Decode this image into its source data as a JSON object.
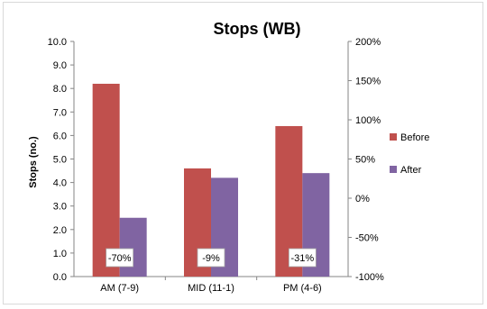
{
  "chart_data": {
    "type": "bar",
    "title": "Stops (WB)",
    "ylabel": "Stops (no.)",
    "xlabel": "",
    "categories": [
      "AM (7-9)",
      "MID (11-1)",
      "PM (4-6)"
    ],
    "series": [
      {
        "name": "Before",
        "values": [
          8.2,
          4.6,
          6.4
        ],
        "color": "#c0504d"
      },
      {
        "name": "After",
        "values": [
          2.5,
          4.2,
          4.4
        ],
        "color": "#8064a2"
      }
    ],
    "ylim": [
      0,
      10
    ],
    "yticks": [
      "0.0",
      "1.0",
      "2.0",
      "3.0",
      "4.0",
      "5.0",
      "6.0",
      "7.0",
      "8.0",
      "9.0",
      "10.0"
    ],
    "y2lim": [
      -100,
      200
    ],
    "y2ticks": [
      "-100%",
      "-50%",
      "0%",
      "50%",
      "100%",
      "150%",
      "200%"
    ],
    "change_labels": [
      "-70%",
      "-9%",
      "-31%"
    ],
    "grid": false,
    "legend_position": "right"
  }
}
